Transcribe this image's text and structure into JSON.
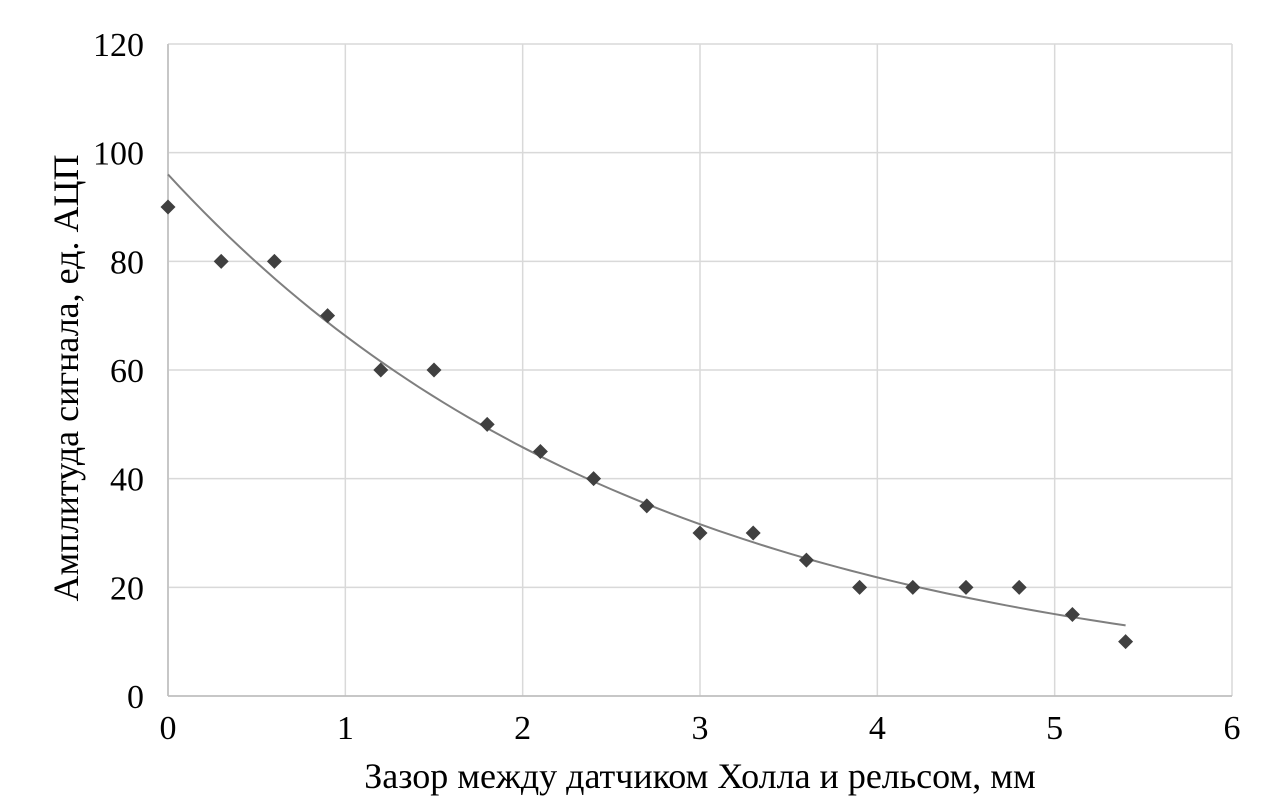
{
  "chart_data": {
    "type": "scatter",
    "title": "",
    "xlabel": "Зазор между датчиком Холла и рельсом, мм",
    "ylabel": "Амплитуда сигнала, ед. АЦП",
    "xlim": [
      0,
      6
    ],
    "ylim": [
      0,
      120
    ],
    "xticks": [
      "0",
      "1",
      "2",
      "3",
      "4",
      "5",
      "6"
    ],
    "yticks": [
      "0",
      "20",
      "40",
      "60",
      "80",
      "100",
      "120"
    ],
    "grid": true,
    "legend": "none",
    "series": [
      {
        "marker": "diamond",
        "color": "#404040",
        "x": [
          0,
          0.3,
          0.6,
          0.9,
          1.2,
          1.5,
          1.8,
          2.1,
          2.4,
          2.7,
          3.0,
          3.3,
          3.6,
          3.9,
          4.2,
          4.5,
          4.8,
          5.1,
          5.4
        ],
        "y": [
          90,
          80,
          80,
          70,
          60,
          60,
          50,
          45,
          40,
          35,
          30,
          30,
          25,
          20,
          20,
          20,
          20,
          15,
          10
        ]
      }
    ],
    "trendline": {
      "type": "exponential",
      "color": "#7f7f7f",
      "x": [
        0,
        5.4
      ],
      "y_start": 96,
      "y_end": 13
    }
  }
}
